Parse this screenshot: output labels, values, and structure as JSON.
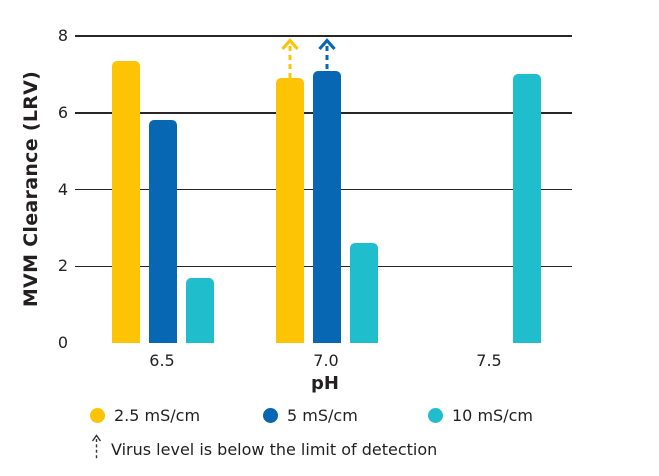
{
  "chart_data": {
    "type": "bar",
    "title": "",
    "ylabel": "MVM Clearance (LRV)",
    "xlabel": "pH",
    "ylim": [
      0,
      8
    ],
    "yticks": [
      0,
      2,
      4,
      6,
      8
    ],
    "grid": "horizontal gridlines at 2, 4, 6, 8; no baseline axis line",
    "categories": [
      "6.5",
      "7.0",
      "7.5"
    ],
    "series": [
      {
        "name": "2.5 mS/cm",
        "color": "#FCC405",
        "values": [
          7.35,
          6.9,
          null
        ],
        "below_detection_limit": [
          false,
          true,
          false
        ]
      },
      {
        "name": "5 mS/cm",
        "color": "#0767B2",
        "values": [
          5.8,
          7.1,
          null
        ],
        "below_detection_limit": [
          false,
          true,
          false
        ]
      },
      {
        "name": "10 mS/cm",
        "color": "#20BECC",
        "values": [
          1.7,
          2.6,
          7.0
        ],
        "below_detection_limit": [
          false,
          false,
          false
        ]
      }
    ],
    "legend_position": "bottom",
    "annotation": "Virus level is below the limit of detection",
    "annotation_icon": "dashed-up-arrow"
  },
  "colors": {
    "text": "#231F20",
    "gridline": "#2A2627",
    "background": "#FFFFFF",
    "footnote_arrow": "#333333"
  }
}
